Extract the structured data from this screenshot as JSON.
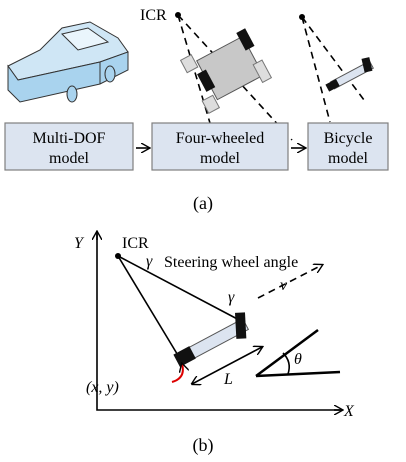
{
  "panel_a": {
    "icr_label": "ICR",
    "boxes": [
      {
        "lines": [
          "Multi-DOF",
          "model"
        ]
      },
      {
        "lines": [
          "Four-wheeled",
          "model"
        ]
      },
      {
        "lines": [
          "Bicycle",
          "model"
        ]
      }
    ],
    "caption": "(a)"
  },
  "panel_b": {
    "y_axis_label": "Y",
    "x_axis_label": "X",
    "icr_label": "ICR",
    "gamma_label": "γ",
    "steering_label": "Steering wheel angle",
    "gamma_wheel_label": "γ",
    "velocity_label": "v",
    "theta_label": "θ",
    "length_label": "L",
    "position_label": "(x, y)",
    "caption": "(b)"
  }
}
